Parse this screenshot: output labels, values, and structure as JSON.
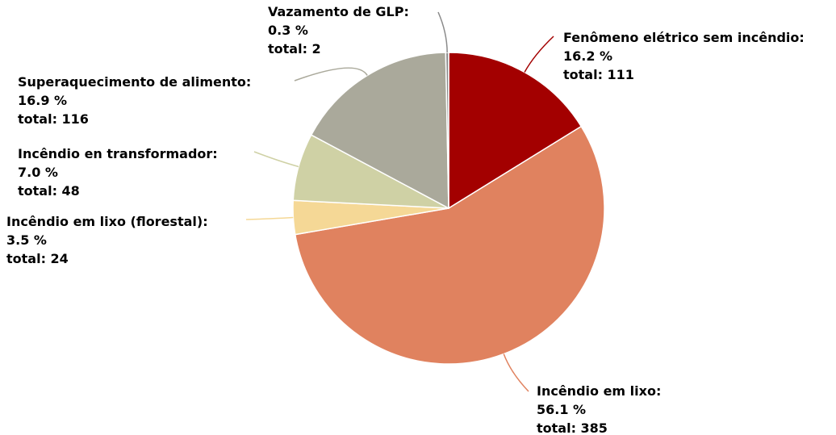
{
  "chart_data": {
    "type": "pie",
    "categories": [
      "Fenômeno elétrico sem incêndio:",
      "Incêndio em lixo:",
      "Incêndio em lixo (florestal):",
      "Incêndio en transformador:",
      "Superaquecimento de alimento:",
      "Vazamento de GLP:"
    ],
    "values": [
      16.2,
      56.1,
      3.5,
      7.0,
      16.9,
      0.3
    ],
    "value_labels": [
      "16.2 %",
      "56.1 %",
      "3.5 %",
      "7.0 %",
      "16.9 %",
      "0.3 %"
    ],
    "totals": [
      111,
      385,
      24,
      48,
      116,
      2
    ],
    "total_labels": [
      "total: 111",
      "total: 385",
      "total: 24",
      "total: 48",
      "total: 116",
      "total: 2"
    ],
    "colors": [
      "#a30000",
      "#e0825f",
      "#f5d896",
      "#cfd1a5",
      "#aaa99b",
      "#8a8a8a"
    ]
  }
}
